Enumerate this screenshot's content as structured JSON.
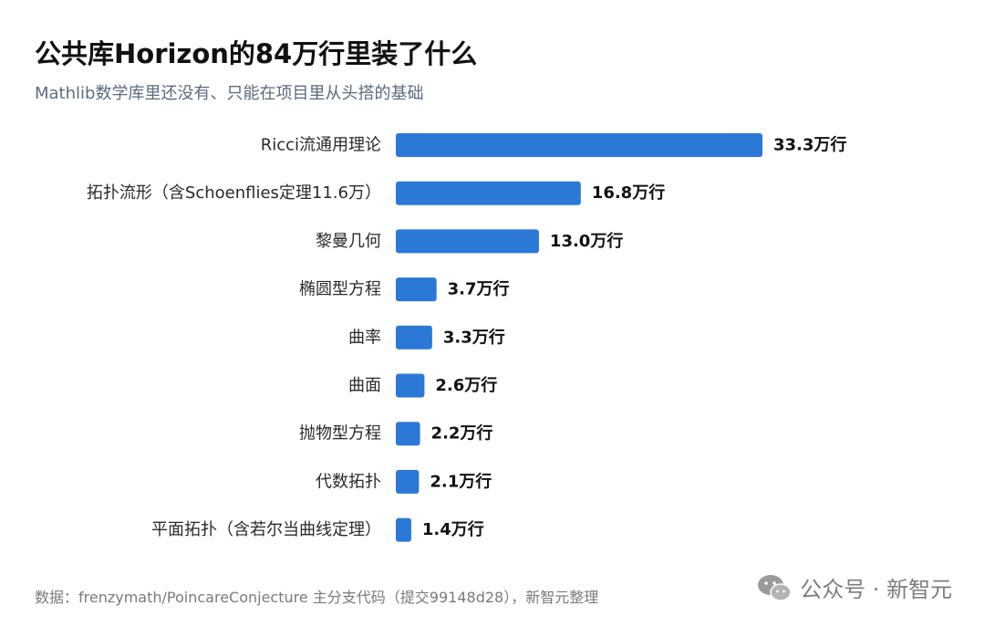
{
  "header": {
    "title": "公共库Horizon的84万行里装了什么",
    "subtitle": "Mathlib数学库里还没有、只能在项目里从头搭的基础"
  },
  "chart_data": {
    "type": "bar",
    "orientation": "horizontal",
    "categories": [
      "Ricci流通用理论",
      "拓扑流形（含Schoenflies定理11.6万）",
      "黎曼几何",
      "椭圆型方程",
      "曲率",
      "曲面",
      "抛物型方程",
      "代数拓扑",
      "平面拓扑（含若尔当曲线定理）"
    ],
    "values": [
      33.3,
      16.8,
      13.0,
      3.7,
      3.3,
      2.6,
      2.2,
      2.1,
      1.4
    ],
    "value_labels": [
      "33.3万行",
      "16.8万行",
      "13.0万行",
      "3.7万行",
      "3.3万行",
      "2.6万行",
      "2.2万行",
      "2.1万行",
      "1.4万行"
    ],
    "unit": "万行",
    "xlim": [
      0,
      33.3
    ],
    "bar_color": "#2b78d6",
    "grid": false,
    "legend": "none"
  },
  "footer": {
    "source": "数据：frenzymath/PoincareConjecture 主分支代码（提交99148d28），新智元整理"
  },
  "watermark": {
    "icon": "wechat-icon",
    "text": "公众号 · 新智元"
  }
}
